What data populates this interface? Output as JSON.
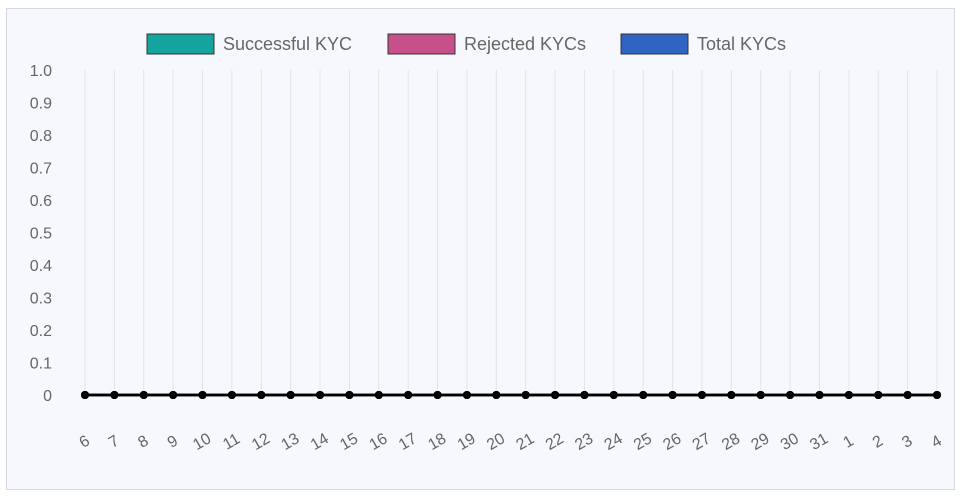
{
  "chart_data": {
    "type": "line",
    "title": "",
    "xlabel": "",
    "ylabel": "",
    "categories": [
      "6",
      "7",
      "8",
      "9",
      "10",
      "11",
      "12",
      "13",
      "14",
      "15",
      "16",
      "17",
      "18",
      "19",
      "20",
      "21",
      "22",
      "23",
      "24",
      "25",
      "26",
      "27",
      "28",
      "29",
      "30",
      "31",
      "1",
      "2",
      "3",
      "4"
    ],
    "series": [
      {
        "name": "Successful KYC",
        "color": "#14a39d",
        "values": [
          0,
          0,
          0,
          0,
          0,
          0,
          0,
          0,
          0,
          0,
          0,
          0,
          0,
          0,
          0,
          0,
          0,
          0,
          0,
          0,
          0,
          0,
          0,
          0,
          0,
          0,
          0,
          0,
          0,
          0
        ]
      },
      {
        "name": "Rejected KYCs",
        "color": "#c7508a",
        "values": [
          0,
          0,
          0,
          0,
          0,
          0,
          0,
          0,
          0,
          0,
          0,
          0,
          0,
          0,
          0,
          0,
          0,
          0,
          0,
          0,
          0,
          0,
          0,
          0,
          0,
          0,
          0,
          0,
          0,
          0
        ]
      },
      {
        "name": "Total KYCs",
        "color": "#2f63c4",
        "values": [
          0,
          0,
          0,
          0,
          0,
          0,
          0,
          0,
          0,
          0,
          0,
          0,
          0,
          0,
          0,
          0,
          0,
          0,
          0,
          0,
          0,
          0,
          0,
          0,
          0,
          0,
          0,
          0,
          0,
          0
        ]
      }
    ],
    "ylim": [
      0,
      1
    ],
    "yticks": [
      "0",
      "0.1",
      "0.2",
      "0.3",
      "0.4",
      "0.5",
      "0.6",
      "0.7",
      "0.8",
      "0.9",
      "1.0"
    ],
    "grid": "vertical",
    "legend_position": "top-center",
    "line_color": "#000000",
    "point_color": "#000000"
  }
}
